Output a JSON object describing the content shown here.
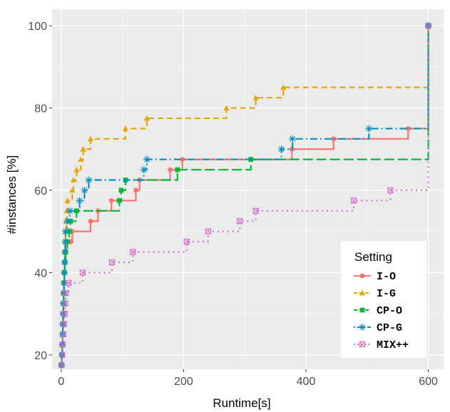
{
  "chart_data": {
    "type": "line",
    "xlabel": "Runtime[s]",
    "ylabel": "#instances [%]",
    "xlim": [
      -15,
      625
    ],
    "ylim": [
      16.5,
      104
    ],
    "x_ticks": [
      0,
      200,
      400,
      600
    ],
    "y_ticks": [
      20,
      40,
      60,
      80,
      100
    ],
    "x_tick_labels": [
      "0",
      "200",
      "400",
      "600"
    ],
    "y_tick_labels": [
      "20",
      "40",
      "60",
      "80",
      "100"
    ],
    "grid": true,
    "background": "#ebebeb",
    "legend": {
      "title": "Setting",
      "position": "bottom-right"
    },
    "series": [
      {
        "name": "I-O",
        "color": "#f8766d",
        "marker": "circle",
        "linestyle": "solid",
        "points": [
          [
            0.5,
            17.5
          ],
          [
            1,
            20
          ],
          [
            1.5,
            22.5
          ],
          [
            2,
            25
          ],
          [
            2.5,
            27.5
          ],
          [
            3,
            30
          ],
          [
            3.5,
            32.5
          ],
          [
            4,
            35
          ],
          [
            4.5,
            37.5
          ],
          [
            5,
            40
          ],
          [
            5.5,
            42.5
          ],
          [
            6,
            45
          ],
          [
            7,
            47.5
          ],
          [
            16,
            47.5
          ],
          [
            18,
            50
          ],
          [
            48,
            52.5
          ],
          [
            60,
            55
          ],
          [
            82,
            57.5
          ],
          [
            122,
            60
          ],
          [
            128,
            62.5
          ],
          [
            178,
            65
          ],
          [
            198,
            67.5
          ],
          [
            377,
            70
          ],
          [
            445,
            72.5
          ],
          [
            567,
            75
          ],
          [
            600,
            100
          ]
        ]
      },
      {
        "name": "I-G",
        "color": "#e6a800",
        "marker": "triangle",
        "linestyle": "dashed",
        "points": [
          [
            0.5,
            17.5
          ],
          [
            1,
            20
          ],
          [
            1.5,
            22.5
          ],
          [
            2,
            25
          ],
          [
            2.5,
            27.5
          ],
          [
            3,
            30
          ],
          [
            3.5,
            32.5
          ],
          [
            4,
            35
          ],
          [
            4.5,
            37.5
          ],
          [
            5,
            40
          ],
          [
            5.5,
            42.5
          ],
          [
            6,
            45
          ],
          [
            6.5,
            47.5
          ],
          [
            7,
            50
          ],
          [
            8,
            52.5
          ],
          [
            9,
            55
          ],
          [
            10,
            57.5
          ],
          [
            18,
            60
          ],
          [
            20,
            62.5
          ],
          [
            25,
            65
          ],
          [
            32,
            67.5
          ],
          [
            36,
            70
          ],
          [
            48,
            72.5
          ],
          [
            105,
            75
          ],
          [
            140,
            77.5
          ],
          [
            270,
            80
          ],
          [
            318,
            82.5
          ],
          [
            363,
            85
          ],
          [
            600,
            100
          ]
        ]
      },
      {
        "name": "CP-O",
        "color": "#00ba38",
        "marker": "square",
        "linestyle": "longdash",
        "points": [
          [
            0.5,
            17.5
          ],
          [
            1,
            20
          ],
          [
            1.5,
            22.5
          ],
          [
            2,
            25
          ],
          [
            2.5,
            27.5
          ],
          [
            3,
            30
          ],
          [
            3.5,
            32.5
          ],
          [
            4,
            35
          ],
          [
            4.5,
            37.5
          ],
          [
            5,
            40
          ],
          [
            6,
            42.5
          ],
          [
            7,
            45
          ],
          [
            10,
            47.5
          ],
          [
            13,
            50
          ],
          [
            15,
            52.5
          ],
          [
            25,
            55
          ],
          [
            95,
            57.5
          ],
          [
            98,
            60
          ],
          [
            105,
            62.5
          ],
          [
            190,
            65
          ],
          [
            310,
            67.5
          ],
          [
            600,
            100
          ]
        ]
      },
      {
        "name": "CP-G",
        "color": "#0a8fc4",
        "marker": "asterisk",
        "linestyle": "dotdash",
        "points": [
          [
            0.5,
            17.5
          ],
          [
            1,
            20
          ],
          [
            1.5,
            22.5
          ],
          [
            2,
            25
          ],
          [
            2.5,
            27.5
          ],
          [
            3,
            30
          ],
          [
            3.5,
            32.5
          ],
          [
            4,
            35
          ],
          [
            4.5,
            37.5
          ],
          [
            5,
            40
          ],
          [
            5.5,
            42.5
          ],
          [
            6,
            45
          ],
          [
            6.5,
            47.5
          ],
          [
            7,
            50
          ],
          [
            10,
            52.5
          ],
          [
            14,
            55
          ],
          [
            30,
            57.5
          ],
          [
            38,
            60
          ],
          [
            45,
            62.5
          ],
          [
            135,
            65
          ],
          [
            140,
            67.5
          ],
          [
            360,
            70
          ],
          [
            378,
            72.5
          ],
          [
            503,
            75
          ],
          [
            600,
            100
          ]
        ]
      },
      {
        "name": "MIX++",
        "color": "#d56ece",
        "marker": "box-x",
        "linestyle": "dotted",
        "points": [
          [
            0.5,
            17.5
          ],
          [
            1.5,
            20
          ],
          [
            2.5,
            22.5
          ],
          [
            3.5,
            25
          ],
          [
            4.5,
            27.5
          ],
          [
            5.5,
            30
          ],
          [
            6.5,
            32.5
          ],
          [
            7.5,
            35
          ],
          [
            12,
            37.5
          ],
          [
            35,
            40
          ],
          [
            83,
            42.5
          ],
          [
            117,
            45
          ],
          [
            205,
            47.5
          ],
          [
            240,
            50
          ],
          [
            292,
            52.5
          ],
          [
            318,
            55
          ],
          [
            478,
            57.5
          ],
          [
            538,
            60
          ],
          [
            600,
            100
          ]
        ]
      }
    ]
  }
}
